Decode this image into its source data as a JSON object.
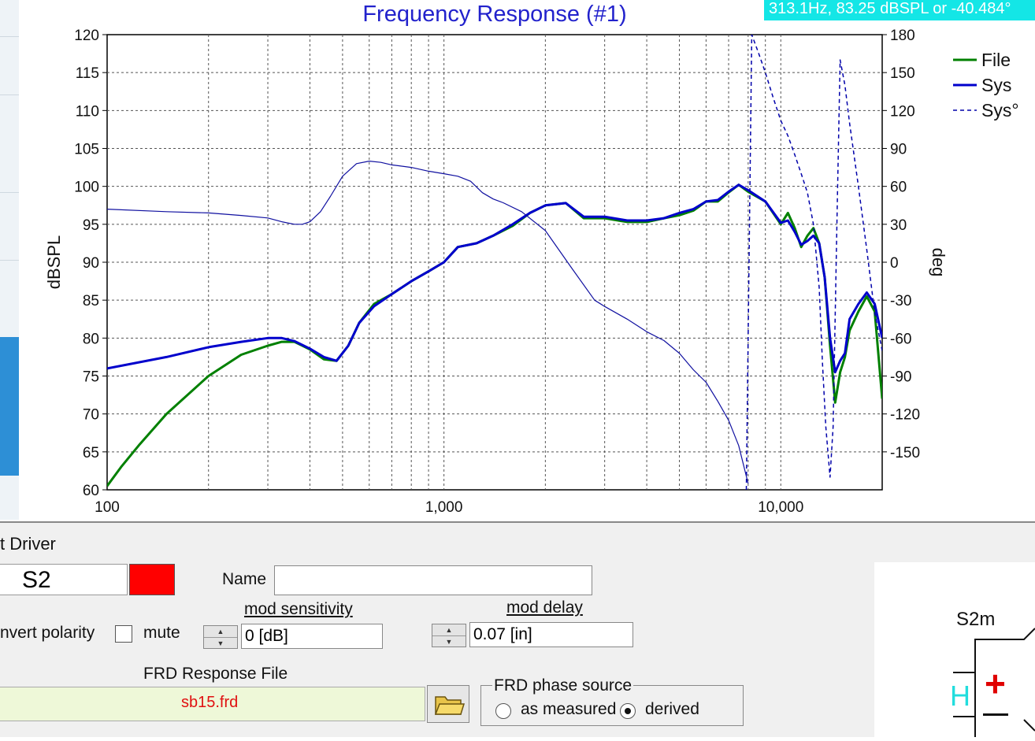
{
  "chart_data": {
    "type": "line",
    "title": "Frequency Response (#1)",
    "ylabel": "dBSPL",
    "y2label": "deg",
    "x_scale": "log",
    "xlim": [
      100,
      20000
    ],
    "ylim": [
      60,
      120
    ],
    "y2lim": [
      -180,
      180
    ],
    "x_ticks": [
      "100",
      "1,000",
      "10,000"
    ],
    "y_ticks": [
      "120",
      "115",
      "110",
      "105",
      "100",
      "95",
      "90",
      "85",
      "80",
      "75",
      "70",
      "65",
      "60"
    ],
    "y2_ticks": [
      "180",
      "150",
      "120",
      "90",
      "60",
      "30",
      "0",
      "-30",
      "-60",
      "-90",
      "-120",
      "-150"
    ],
    "grid": true,
    "legend_position": "top-right",
    "series": [
      {
        "name": "File",
        "axis": "left",
        "color": "#008000",
        "style": "solid",
        "x": [
          100,
          110,
          125,
          150,
          200,
          250,
          300,
          330,
          360,
          400,
          440,
          480,
          520,
          560,
          620,
          700,
          800,
          900,
          1000,
          1100,
          1250,
          1400,
          1600,
          1800,
          2000,
          2300,
          2600,
          3000,
          3500,
          4000,
          4500,
          5000,
          5500,
          6000,
          6500,
          7000,
          7500,
          8000,
          9000,
          10000,
          10500,
          11000,
          11500,
          12000,
          12500,
          13000,
          13500,
          14000,
          14500,
          15000,
          15500,
          16000,
          17000,
          18000,
          19000,
          20000
        ],
        "y": [
          60.5,
          63,
          66,
          70,
          75,
          77.8,
          79,
          79.5,
          79.5,
          78.5,
          77.2,
          77,
          79,
          82,
          84.5,
          85.8,
          87.5,
          88.8,
          90,
          92,
          92.5,
          93.5,
          94.8,
          96.5,
          97.5,
          97.8,
          95.8,
          95.8,
          95.3,
          95.3,
          95.8,
          96.2,
          96.8,
          98,
          98,
          99.2,
          100.2,
          99.3,
          98,
          95,
          96.5,
          94.5,
          92,
          93.5,
          94.5,
          92.5,
          88,
          79,
          71.5,
          75.5,
          77.5,
          81,
          83.5,
          85.5,
          83.5,
          72
        ]
      },
      {
        "name": "Sys",
        "axis": "left",
        "color": "#0000cc",
        "style": "solid",
        "x": [
          100,
          150,
          200,
          250,
          300,
          330,
          360,
          400,
          440,
          480,
          520,
          560,
          620,
          700,
          800,
          900,
          1000,
          1100,
          1250,
          1400,
          1600,
          1800,
          2000,
          2300,
          2600,
          3000,
          3500,
          4000,
          4500,
          5000,
          5500,
          6000,
          6500,
          7000,
          7500,
          8000,
          9000,
          10000,
          10500,
          11000,
          11500,
          12000,
          12500,
          13000,
          13500,
          14000,
          14500,
          15000,
          15500,
          16000,
          17000,
          18000,
          19000,
          20000
        ],
        "y": [
          76,
          77.5,
          78.8,
          79.5,
          80,
          80,
          79.6,
          78.6,
          77.5,
          77,
          79,
          82,
          84.2,
          85.8,
          87.5,
          88.8,
          90,
          92,
          92.5,
          93.5,
          95,
          96.5,
          97.5,
          97.8,
          96,
          96,
          95.5,
          95.5,
          95.8,
          96.5,
          97,
          98,
          98.2,
          99.3,
          100.2,
          99.5,
          98,
          95.2,
          95.5,
          94,
          92.3,
          92.8,
          93.5,
          92.5,
          88,
          80,
          75.5,
          77,
          78,
          82.5,
          84.5,
          86,
          84.5,
          80
        ]
      },
      {
        "name": "Sys°",
        "axis": "right",
        "color": "#0000aa",
        "style": "dashed",
        "x": [
          7900,
          8200,
          8600,
          9000,
          9500,
          10000,
          10500,
          11000,
          11500,
          12000,
          12500,
          13000,
          13300,
          13600,
          14000,
          14300,
          14700,
          15000,
          15500,
          16000,
          17000,
          18000,
          19000,
          20000
        ],
        "y": [
          -180,
          180,
          165,
          150,
          130,
          112,
          100,
          85,
          70,
          55,
          30,
          -20,
          -80,
          -130,
          -170,
          -130,
          40,
          160,
          140,
          110,
          60,
          10,
          -40,
          -70
        ]
      },
      {
        "name": "",
        "axis": "right",
        "color": "#1010a0",
        "style": "thin",
        "x": [
          100,
          150,
          200,
          250,
          300,
          330,
          360,
          380,
          400,
          430,
          460,
          500,
          550,
          600,
          650,
          700,
          800,
          900,
          1000,
          1100,
          1200,
          1300,
          1400,
          1500,
          1700,
          2000,
          2400,
          2800,
          3000,
          3500,
          4000,
          4500,
          5000,
          5500,
          6000,
          6500,
          7000,
          7500,
          8000
        ],
        "y": [
          42,
          40,
          39,
          37,
          35,
          32,
          30,
          30,
          32,
          40,
          52,
          68,
          78,
          80,
          79,
          77,
          75,
          72,
          70,
          68,
          64,
          55,
          50,
          47,
          40,
          25,
          -5,
          -30,
          -35,
          -45,
          -55,
          -62,
          -72,
          -85,
          -95,
          -110,
          -125,
          -145,
          -175
        ]
      }
    ]
  },
  "cursor_readout": "313.1Hz, 83.25 dBSPL or -40.484°",
  "driver_panel": {
    "title": "t Driver",
    "driver_name": "S2",
    "driver_color": "#ff0000",
    "name_label": "Name",
    "name_value": "",
    "invert_polarity_label": "nvert polarity",
    "mute_label": "mute",
    "mod_sensitivity_label": "mod sensitivity",
    "mod_sensitivity_value": "0 [dB]",
    "mod_delay_label": "mod delay",
    "mod_delay_value": "0.07 [in]",
    "frd_file_label": "FRD Response File",
    "frd_file_value": "sb15.frd",
    "frd_phase_label": "FRD phase source",
    "phase_options": [
      "as measured",
      "derived"
    ],
    "phase_selected": "derived",
    "schematic_label": "S2m",
    "schematic_h": "H",
    "schematic_plus": "+"
  }
}
